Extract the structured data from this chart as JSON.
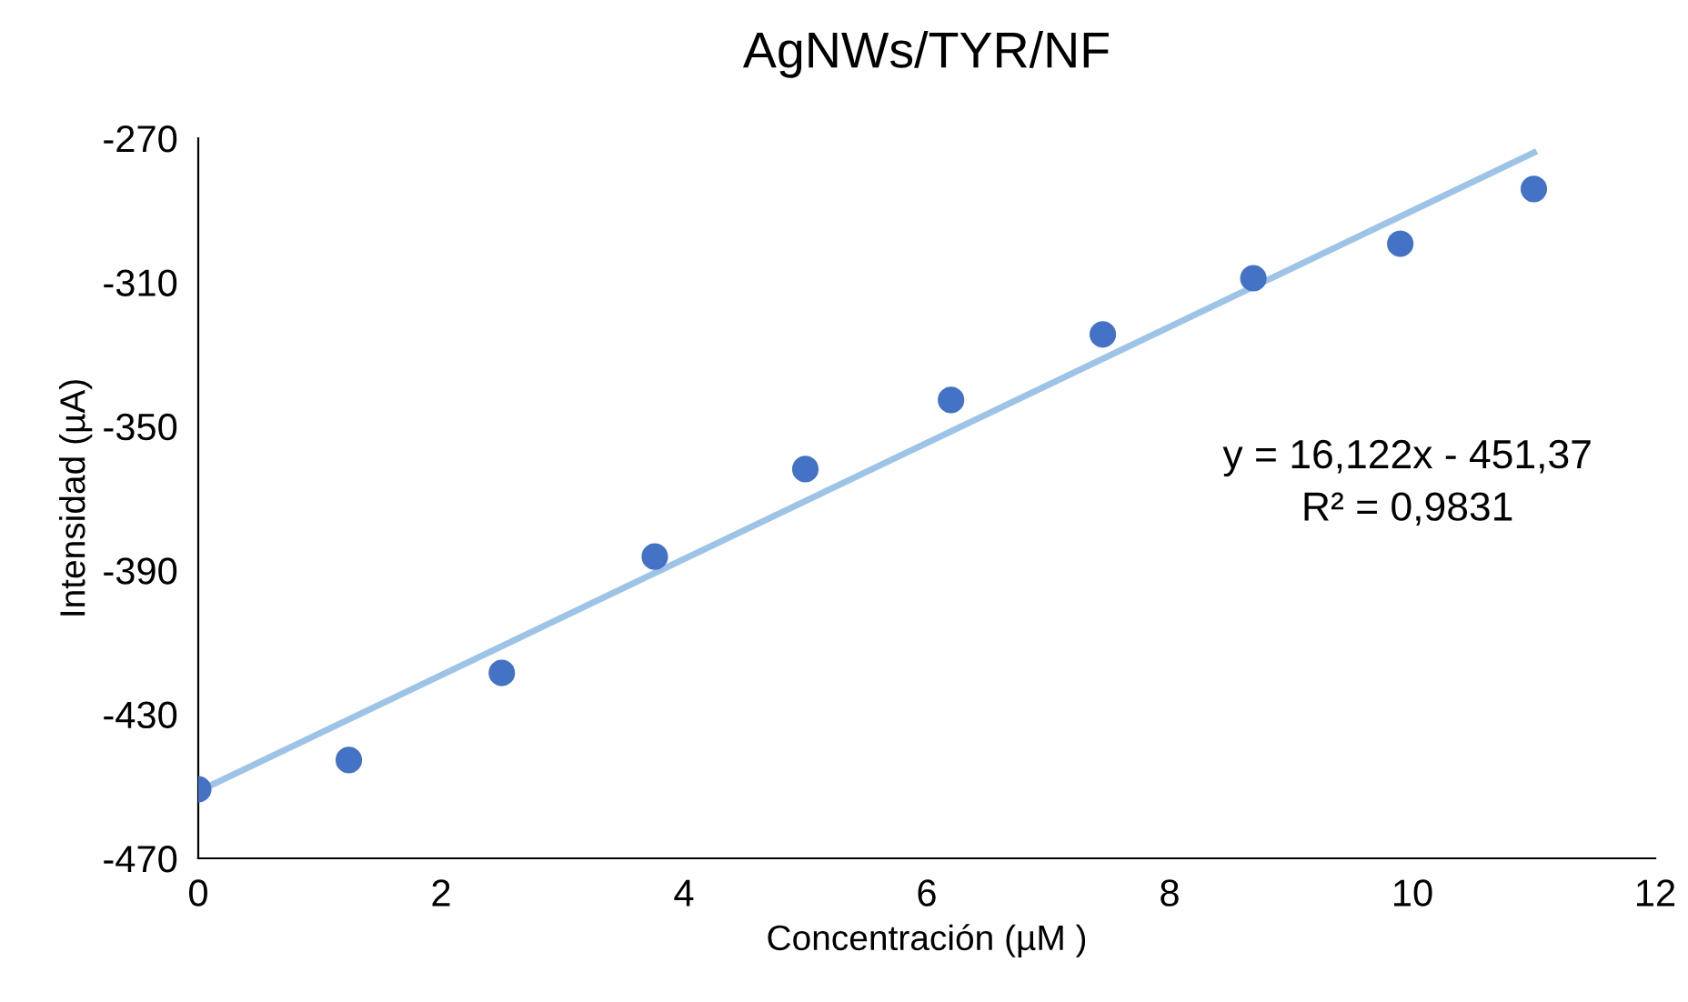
{
  "chart_data": {
    "type": "scatter",
    "title": "AgNWs/TYR/NF",
    "xlabel": "Concentración (µM )",
    "ylabel": "Intensidad (µA)",
    "x": [
      0,
      1.24,
      2.5,
      3.76,
      5.0,
      6.2,
      7.45,
      8.69,
      9.9,
      11.0
    ],
    "series": [
      {
        "color": "#4472c4",
        "marker": "circle",
        "values": [
          -450.8,
          -442.7,
          -418.5,
          -386.2,
          -361.9,
          -342.7,
          -324.5,
          -308.9,
          -299.3,
          -284.1
        ]
      },
      {
        "type": "line",
        "color": "#9dc3e6",
        "x": [
          0,
          11
        ],
        "values": [
          -451.4,
          -274.0
        ],
        "marker": "none"
      }
    ],
    "annotations": [
      "y = 16,122x - 451,37\nR² = 0,9831"
    ],
    "xlim": [
      0,
      12
    ],
    "xticks": [
      0,
      2,
      4,
      6,
      8,
      10,
      12
    ],
    "ylim": [
      -470,
      -270
    ],
    "yticks": [
      -470,
      -430,
      -390,
      -350,
      -310,
      -270
    ],
    "grid": false,
    "legend": false
  }
}
